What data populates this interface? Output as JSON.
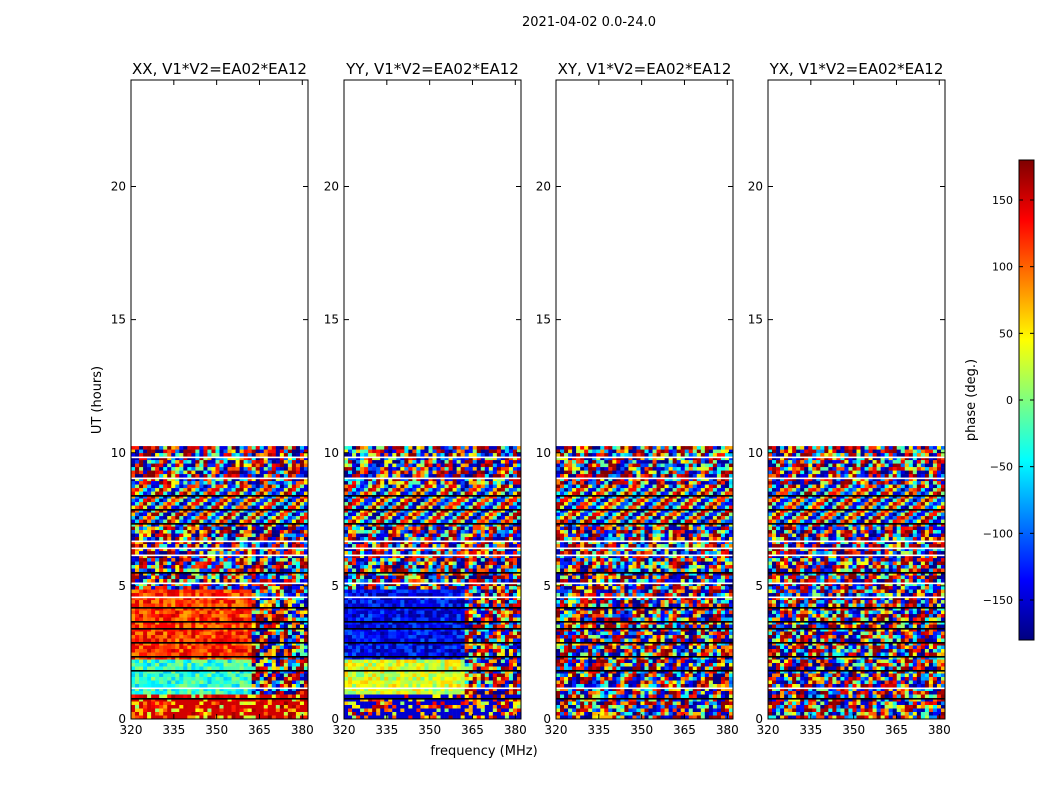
{
  "chart_data": {
    "type": "heatmap",
    "suptitle": "2021-04-02 0.0-24.0",
    "xlabel": "frequency (MHz)",
    "ylabel": "UT (hours)",
    "xlim": [
      320,
      382
    ],
    "ylim": [
      0,
      24
    ],
    "xticks": [
      320,
      335,
      350,
      365,
      380
    ],
    "yticks": [
      0,
      5,
      10,
      15,
      20
    ],
    "data_extent_hours": [
      0,
      10.25
    ],
    "colorbar": {
      "label": "phase (deg.)",
      "colormap": "jet",
      "range": [
        -180,
        180
      ],
      "ticks": [
        150,
        100,
        50,
        0,
        -50,
        -100,
        -150
      ],
      "tick_labels": [
        "150",
        "100",
        "50",
        "0",
        "−50",
        "−100",
        "−150"
      ]
    },
    "panels": [
      {
        "title": "XX, V1*V2=EA02*EA12",
        "pol": "XX"
      },
      {
        "title": "YY, V1*V2=EA02*EA12",
        "pol": "YY"
      },
      {
        "title": "XY, V1*V2=EA02*EA12",
        "pol": "XY"
      },
      {
        "title": "YX, V1*V2=EA02*EA12",
        "pol": "YX"
      }
    ]
  }
}
